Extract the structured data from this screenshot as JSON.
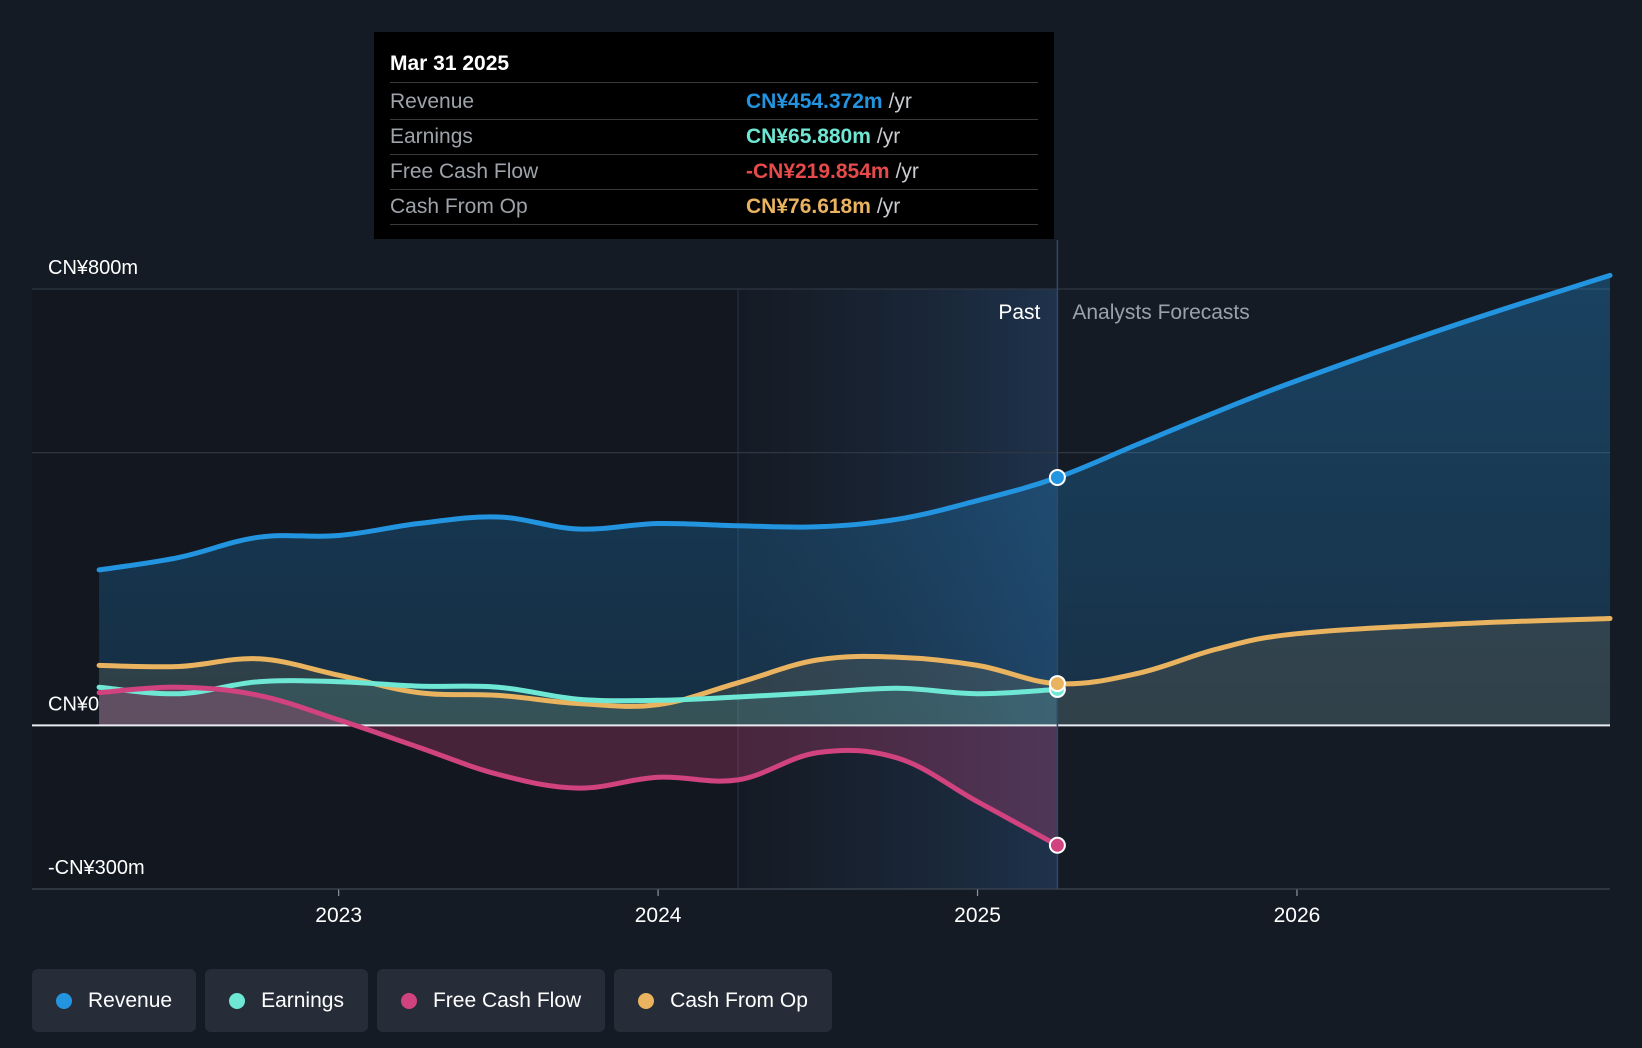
{
  "chart_data": {
    "type": "line",
    "title": "",
    "x_unit": "year",
    "ylim": [
      -300,
      800
    ],
    "y_ticks": [
      {
        "value": 800,
        "label": "CN¥800m"
      },
      {
        "value": 0,
        "label": "CN¥0"
      },
      {
        "value": -300,
        "label": "-CN¥300m"
      }
    ],
    "x_ticks": [
      {
        "value": 2023,
        "label": "2023"
      },
      {
        "value": 2024,
        "label": "2024"
      },
      {
        "value": 2025,
        "label": "2025"
      },
      {
        "value": 2026,
        "label": "2026"
      }
    ],
    "xlim": [
      2022.04,
      2026.98
    ],
    "past_label": "Past",
    "forecast_label": "Analysts Forecasts",
    "divider_x": 2025.25,
    "highlight_start_x": 2024.25,
    "series": [
      {
        "name": "Revenue",
        "color": "#2394df",
        "points": [
          [
            2022.25,
            285
          ],
          [
            2022.5,
            308
          ],
          [
            2022.75,
            345
          ],
          [
            2023.0,
            348
          ],
          [
            2023.25,
            370
          ],
          [
            2023.5,
            382
          ],
          [
            2023.75,
            360
          ],
          [
            2024.0,
            370
          ],
          [
            2024.25,
            366
          ],
          [
            2024.5,
            364
          ],
          [
            2024.75,
            378
          ],
          [
            2025.0,
            412
          ],
          [
            2025.25,
            454.372
          ],
          [
            2025.5,
            515
          ],
          [
            2025.75,
            575
          ],
          [
            2026.0,
            632
          ],
          [
            2026.5,
            735
          ],
          [
            2026.98,
            825
          ]
        ],
        "forecast_from": 2025.25
      },
      {
        "name": "Earnings",
        "color": "#6ee7d4",
        "points": [
          [
            2022.25,
            70
          ],
          [
            2022.5,
            58
          ],
          [
            2022.75,
            80
          ],
          [
            2023.0,
            80
          ],
          [
            2023.25,
            72
          ],
          [
            2023.5,
            70
          ],
          [
            2023.75,
            48
          ],
          [
            2024.0,
            46
          ],
          [
            2024.25,
            52
          ],
          [
            2024.5,
            60
          ],
          [
            2024.75,
            68
          ],
          [
            2025.0,
            58
          ],
          [
            2025.25,
            65.88
          ]
        ],
        "forecast_from": null
      },
      {
        "name": "Free Cash Flow",
        "color": "#d0437f",
        "points": [
          [
            2022.25,
            60
          ],
          [
            2022.5,
            70
          ],
          [
            2022.75,
            55
          ],
          [
            2023.0,
            10
          ],
          [
            2023.25,
            -40
          ],
          [
            2023.5,
            -90
          ],
          [
            2023.75,
            -115
          ],
          [
            2024.0,
            -95
          ],
          [
            2024.25,
            -100
          ],
          [
            2024.5,
            -50
          ],
          [
            2024.75,
            -60
          ],
          [
            2025.0,
            -140
          ],
          [
            2025.25,
            -219.854
          ]
        ],
        "forecast_from": null
      },
      {
        "name": "Cash From Op",
        "color": "#e9b35f",
        "points": [
          [
            2022.25,
            110
          ],
          [
            2022.5,
            108
          ],
          [
            2022.75,
            122
          ],
          [
            2023.0,
            92
          ],
          [
            2023.25,
            60
          ],
          [
            2023.5,
            55
          ],
          [
            2023.75,
            40
          ],
          [
            2024.0,
            38
          ],
          [
            2024.25,
            78
          ],
          [
            2024.5,
            120
          ],
          [
            2024.75,
            125
          ],
          [
            2025.0,
            110
          ],
          [
            2025.25,
            76.618
          ],
          [
            2025.5,
            95
          ],
          [
            2025.75,
            140
          ],
          [
            2026.0,
            168
          ],
          [
            2026.5,
            186
          ],
          [
            2026.98,
            196
          ]
        ],
        "forecast_from": 2025.25
      }
    ]
  },
  "tooltip": {
    "date": "Mar 31 2025",
    "rows": [
      {
        "label": "Revenue",
        "value": "CN¥454.372m",
        "unit": "/yr",
        "color": "#2394df"
      },
      {
        "label": "Earnings",
        "value": "CN¥65.880m",
        "unit": "/yr",
        "color": "#6ee7d4"
      },
      {
        "label": "Free Cash Flow",
        "value": "-CN¥219.854m",
        "unit": "/yr",
        "color": "#e64a4a"
      },
      {
        "label": "Cash From Op",
        "value": "CN¥76.618m",
        "unit": "/yr",
        "color": "#e9b35f"
      }
    ]
  },
  "legend": [
    {
      "label": "Revenue",
      "color": "#2394df"
    },
    {
      "label": "Earnings",
      "color": "#6ee7d4"
    },
    {
      "label": "Free Cash Flow",
      "color": "#d0437f"
    },
    {
      "label": "Cash From Op",
      "color": "#e9b35f"
    }
  ]
}
